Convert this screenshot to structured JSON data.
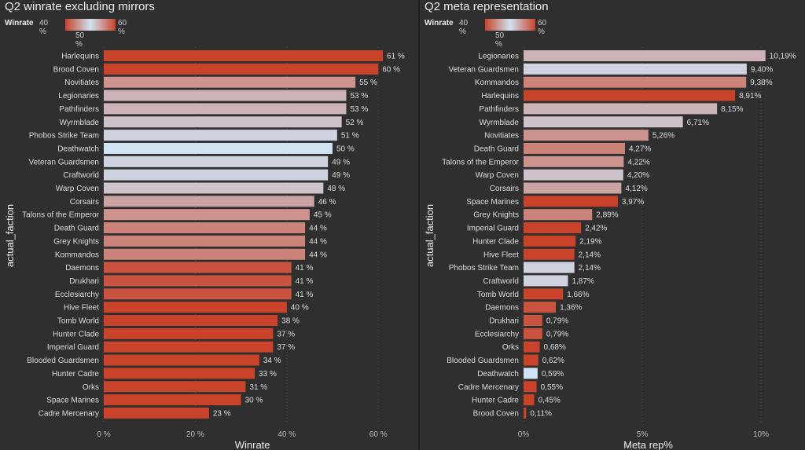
{
  "chart_data": [
    {
      "type": "bar",
      "title": "Q2 winrate excluding mirrors",
      "xlabel": "Winrate",
      "ylabel": "actual_faction",
      "xlim": [
        0,
        65
      ],
      "xticks": [
        "0 %",
        "20 %",
        "40 %",
        "60 %"
      ],
      "xtick_values": [
        0,
        20,
        40,
        60
      ],
      "legend": {
        "title": "Winrate",
        "min": "40 %",
        "mid": "50 %",
        "max": "60 %"
      },
      "categories": [
        "Harlequins",
        "Brood Coven",
        "Novitiates",
        "Legionaries",
        "Pathfinders",
        "Wyrmblade",
        "Phobos Strike Team",
        "Deathwatch",
        "Veteran Guardsmen",
        "Craftworld",
        "Warp Coven",
        "Corsairs",
        "Talons of the Emperor",
        "Death Guard",
        "Grey Knights",
        "Kommandos",
        "Daemons",
        "Drukhari",
        "Ecclesiarchy",
        "Hive Fleet",
        "Tomb World",
        "Hunter Clade",
        "Imperial Guard",
        "Blooded Guardsmen",
        "Hunter Cadre",
        "Orks",
        "Space Marines",
        "Cadre Mercenary"
      ],
      "values": [
        61,
        60,
        55,
        53,
        53,
        52,
        51,
        50,
        49,
        49,
        48,
        46,
        45,
        44,
        44,
        44,
        41,
        41,
        41,
        40,
        38,
        37,
        37,
        34,
        33,
        31,
        30,
        23
      ],
      "labels": [
        "61 %",
        "60 %",
        "55 %",
        "53 %",
        "53 %",
        "52 %",
        "51 %",
        "50 %",
        "49 %",
        "49 %",
        "48 %",
        "46 %",
        "45 %",
        "44 %",
        "44 %",
        "44 %",
        "41 %",
        "41 %",
        "41 %",
        "40 %",
        "38 %",
        "37 %",
        "37 %",
        "34 %",
        "33 %",
        "31 %",
        "30 %",
        "23 %"
      ]
    },
    {
      "type": "bar",
      "title": "Q2 meta representation",
      "xlabel": "Meta rep%",
      "ylabel": "actual_faction",
      "xlim": [
        0,
        10.5
      ],
      "xticks": [
        "0%",
        "5%",
        "10%"
      ],
      "xtick_values": [
        0,
        5,
        10
      ],
      "legend": {
        "title": "Winrate",
        "min": "40 %",
        "mid": "50 %",
        "max": "60 %"
      },
      "categories": [
        "Legionaries",
        "Veteran Guardsmen",
        "Kommandos",
        "Harlequins",
        "Pathfinders",
        "Wyrmblade",
        "Novitiates",
        "Death Guard",
        "Talons of the Emperor",
        "Warp Coven",
        "Corsairs",
        "Space Marines",
        "Grey Knights",
        "Imperial Guard",
        "Hunter Clade",
        "Hive Fleet",
        "Phobos Strike Team",
        "Craftworld",
        "Tomb World",
        "Daemons",
        "Drukhari",
        "Ecclesiarchy",
        "Orks",
        "Blooded Guardsmen",
        "Deathwatch",
        "Cadre Mercenary",
        "Hunter Cadre",
        "Brood Coven"
      ],
      "values": [
        10.19,
        9.4,
        9.38,
        8.91,
        8.15,
        6.71,
        5.26,
        4.27,
        4.22,
        4.2,
        4.12,
        3.97,
        2.89,
        2.42,
        2.19,
        2.14,
        2.14,
        1.87,
        1.66,
        1.36,
        0.79,
        0.79,
        0.68,
        0.62,
        0.59,
        0.55,
        0.45,
        0.11
      ],
      "labels": [
        "10,19%",
        "9,40%",
        "9,38%",
        "8,91%",
        "8,15%",
        "6,71%",
        "5,26%",
        "4,27%",
        "4,22%",
        "4,20%",
        "4,12%",
        "3,97%",
        "2,89%",
        "2,42%",
        "2,19%",
        "2,14%",
        "2,14%",
        "1,87%",
        "1,66%",
        "1,36%",
        "0,79%",
        "0,79%",
        "0,68%",
        "0,62%",
        "0,59%",
        "0,55%",
        "0,45%",
        "0,11%"
      ]
    }
  ],
  "colors": {
    "low": "#c8432a",
    "mid": "#cfe3f3",
    "high": "#c8432a"
  }
}
